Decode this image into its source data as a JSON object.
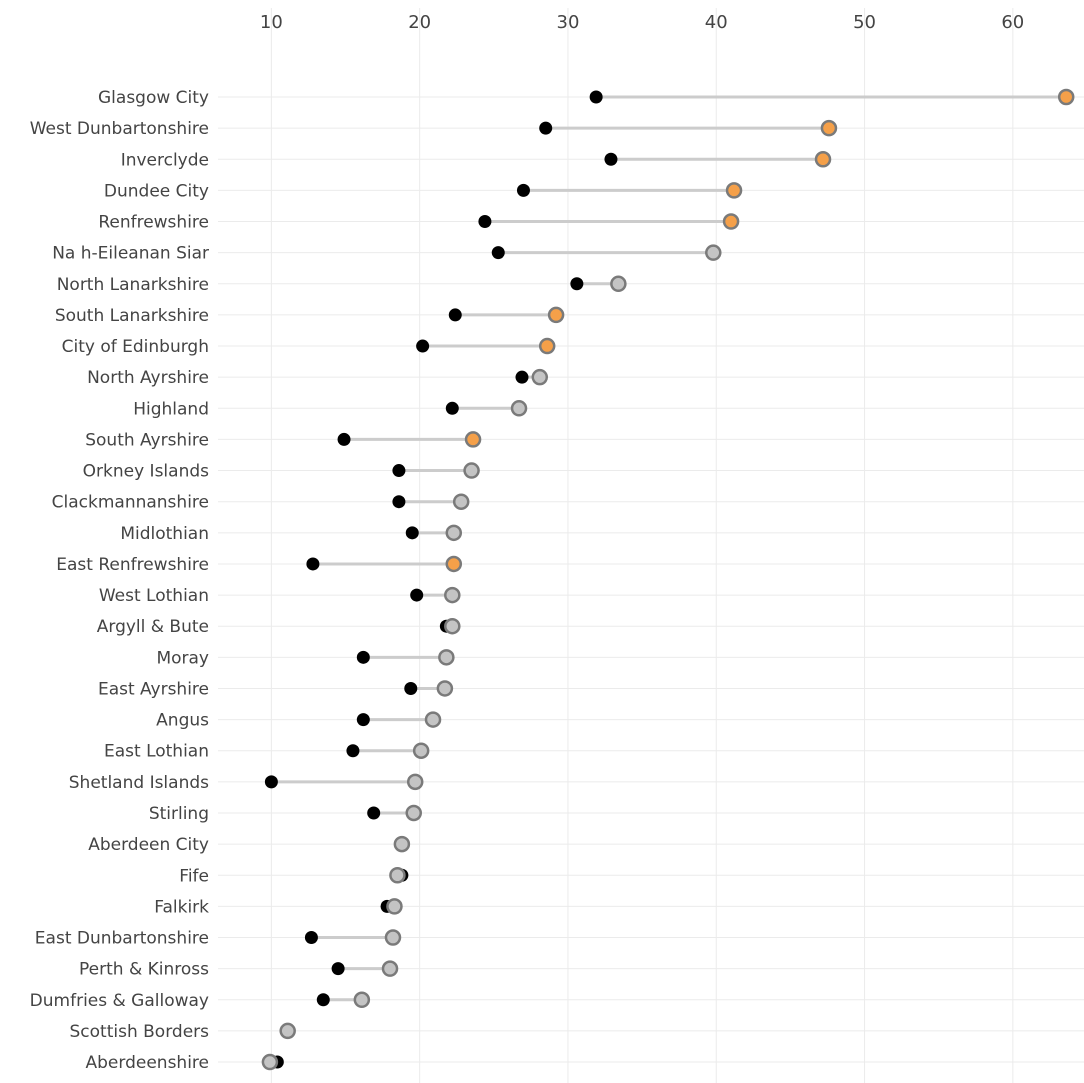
{
  "chart_data": {
    "type": "dumbbell",
    "title": "",
    "xlabel": "",
    "ylabel": "",
    "xlim": [
      6.4,
      64.8
    ],
    "x_ticks": [
      10,
      20,
      30,
      40,
      50,
      60
    ],
    "grid": true,
    "legend": "none",
    "series": [
      {
        "name": "",
        "marker": "black filled dot"
      },
      {
        "name": "",
        "marker": "gray-outlined dot, orange or gray fill"
      }
    ],
    "rows": [
      {
        "label": "Glasgow City",
        "start": 31.9,
        "end": 63.6,
        "highlight": true
      },
      {
        "label": "West Dunbartonshire",
        "start": 28.5,
        "end": 47.6,
        "highlight": true
      },
      {
        "label": "Inverclyde",
        "start": 32.9,
        "end": 47.2,
        "highlight": true
      },
      {
        "label": "Dundee City",
        "start": 27.0,
        "end": 41.2,
        "highlight": true
      },
      {
        "label": "Renfrewshire",
        "start": 24.4,
        "end": 41.0,
        "highlight": true
      },
      {
        "label": "Na h-Eileanan Siar",
        "start": 25.3,
        "end": 39.8,
        "highlight": false
      },
      {
        "label": "North Lanarkshire",
        "start": 30.6,
        "end": 33.4,
        "highlight": false
      },
      {
        "label": "South Lanarkshire",
        "start": 22.4,
        "end": 29.2,
        "highlight": true
      },
      {
        "label": "City of Edinburgh",
        "start": 20.2,
        "end": 28.6,
        "highlight": true
      },
      {
        "label": "North Ayrshire",
        "start": 26.9,
        "end": 28.1,
        "highlight": false
      },
      {
        "label": "Highland",
        "start": 22.2,
        "end": 26.7,
        "highlight": false
      },
      {
        "label": "South Ayrshire",
        "start": 14.9,
        "end": 23.6,
        "highlight": true
      },
      {
        "label": "Orkney Islands",
        "start": 18.6,
        "end": 23.5,
        "highlight": false
      },
      {
        "label": "Clackmannanshire",
        "start": 18.6,
        "end": 22.8,
        "highlight": false
      },
      {
        "label": "Midlothian",
        "start": 19.5,
        "end": 22.3,
        "highlight": false
      },
      {
        "label": "East Renfrewshire",
        "start": 12.8,
        "end": 22.3,
        "highlight": true
      },
      {
        "label": "West Lothian",
        "start": 19.8,
        "end": 22.2,
        "highlight": false
      },
      {
        "label": "Argyll & Bute",
        "start": 21.8,
        "end": 22.2,
        "highlight": false
      },
      {
        "label": "Moray",
        "start": 16.2,
        "end": 21.8,
        "highlight": false
      },
      {
        "label": "East Ayrshire",
        "start": 19.4,
        "end": 21.7,
        "highlight": false
      },
      {
        "label": "Angus",
        "start": 16.2,
        "end": 20.9,
        "highlight": false
      },
      {
        "label": "East Lothian",
        "start": 15.5,
        "end": 20.1,
        "highlight": false
      },
      {
        "label": "Shetland Islands",
        "start": 10.0,
        "end": 19.7,
        "highlight": false
      },
      {
        "label": "Stirling",
        "start": 16.9,
        "end": 19.6,
        "highlight": false
      },
      {
        "label": "Aberdeen City",
        "start": 18.8,
        "end": 18.8,
        "highlight": false
      },
      {
        "label": "Fife",
        "start": 18.8,
        "end": 18.5,
        "highlight": false
      },
      {
        "label": "Falkirk",
        "start": 17.8,
        "end": 18.3,
        "highlight": false
      },
      {
        "label": "East Dunbartonshire",
        "start": 12.7,
        "end": 18.2,
        "highlight": false
      },
      {
        "label": "Perth & Kinross",
        "start": 14.5,
        "end": 18.0,
        "highlight": false
      },
      {
        "label": "Dumfries & Galloway",
        "start": 13.5,
        "end": 16.1,
        "highlight": false
      },
      {
        "label": "Scottish Borders",
        "start": 11.1,
        "end": 11.1,
        "highlight": false
      },
      {
        "label": "Aberdeenshire",
        "start": 10.4,
        "end": 9.9,
        "highlight": false
      }
    ]
  },
  "colors": {
    "start_dot": "#000000",
    "end_highlight": "#f5a049",
    "end_normal": "#c4c4c4",
    "end_stroke": "#7a7a7a",
    "connector": "#cccccc",
    "grid": "#ebebeb"
  }
}
